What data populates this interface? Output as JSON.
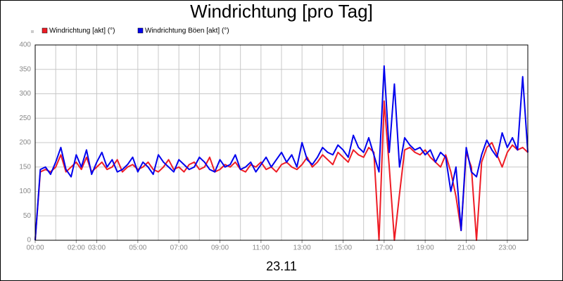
{
  "chart_data": {
    "type": "line",
    "title": "Windrichtung [pro Tag]",
    "xlabel": "23.11",
    "xlim": [
      0,
      24
    ],
    "ylim": [
      0,
      400
    ],
    "yticks": [
      0,
      50,
      100,
      150,
      200,
      250,
      300,
      350,
      400
    ],
    "xticks": [
      {
        "value": 0,
        "label": "00:00"
      },
      {
        "value": 2,
        "label": "02:00"
      },
      {
        "value": 3,
        "label": "03:00"
      },
      {
        "value": 5,
        "label": "05:00"
      },
      {
        "value": 7,
        "label": "07:00"
      },
      {
        "value": 9,
        "label": "09:00"
      },
      {
        "value": 11,
        "label": "11:00"
      },
      {
        "value": 13,
        "label": "13:00"
      },
      {
        "value": 15,
        "label": "15:00"
      },
      {
        "value": 17,
        "label": "17:00"
      },
      {
        "value": 19,
        "label": "19:00"
      },
      {
        "value": 21,
        "label": "21:00"
      },
      {
        "value": 23,
        "label": "23:00"
      }
    ],
    "xgrid": [
      1,
      2,
      3,
      4,
      5,
      6,
      7,
      8,
      9,
      10,
      11,
      12,
      13,
      14,
      15,
      16,
      17,
      18,
      19,
      20,
      21,
      22,
      23
    ],
    "grid": true,
    "x": [
      0,
      0.25,
      0.5,
      0.75,
      1,
      1.25,
      1.5,
      1.75,
      2,
      2.25,
      2.5,
      2.75,
      3,
      3.25,
      3.5,
      3.75,
      4,
      4.25,
      4.5,
      4.75,
      5,
      5.25,
      5.5,
      5.75,
      6,
      6.25,
      6.5,
      6.75,
      7,
      7.25,
      7.5,
      7.75,
      8,
      8.25,
      8.5,
      8.75,
      9,
      9.25,
      9.5,
      9.75,
      10,
      10.25,
      10.5,
      10.75,
      11,
      11.25,
      11.5,
      11.75,
      12,
      12.25,
      12.5,
      12.75,
      13,
      13.25,
      13.5,
      13.75,
      14,
      14.25,
      14.5,
      14.75,
      15,
      15.25,
      15.5,
      15.75,
      16,
      16.25,
      16.5,
      16.75,
      17,
      17.25,
      17.5,
      17.75,
      18,
      18.25,
      18.5,
      18.75,
      19,
      19.25,
      19.5,
      19.75,
      20,
      20.25,
      20.5,
      20.75,
      21,
      21.25,
      21.5,
      21.75,
      22,
      22.25,
      22.5,
      22.75,
      23,
      23.25,
      23.5,
      23.75,
      24
    ],
    "series": [
      {
        "name": "Windrichtung [akt] (°)",
        "color": "#ee1c25",
        "values": [
          0,
          140,
          145,
          140,
          150,
          175,
          140,
          150,
          160,
          145,
          170,
          140,
          150,
          160,
          145,
          150,
          165,
          140,
          150,
          155,
          145,
          150,
          160,
          145,
          140,
          150,
          165,
          145,
          150,
          140,
          155,
          160,
          145,
          150,
          170,
          140,
          145,
          155,
          150,
          160,
          145,
          140,
          155,
          150,
          160,
          145,
          150,
          140,
          155,
          160,
          150,
          145,
          155,
          170,
          150,
          160,
          175,
          165,
          155,
          180,
          170,
          160,
          185,
          175,
          170,
          190,
          180,
          0,
          285,
          150,
          0,
          95,
          185,
          190,
          180,
          175,
          185,
          170,
          160,
          150,
          175,
          140,
          90,
          20,
          180,
          150,
          0,
          160,
          190,
          200,
          175,
          150,
          180,
          195,
          185,
          190,
          180
        ]
      },
      {
        "name": "Windrichtung Böen [akt] (°)",
        "color": "#0000ee",
        "values": [
          0,
          145,
          150,
          135,
          160,
          190,
          145,
          130,
          175,
          150,
          185,
          135,
          160,
          180,
          150,
          165,
          140,
          145,
          155,
          170,
          140,
          160,
          150,
          135,
          175,
          160,
          150,
          140,
          165,
          155,
          145,
          150,
          170,
          160,
          145,
          140,
          165,
          150,
          155,
          175,
          145,
          150,
          160,
          140,
          155,
          170,
          150,
          165,
          180,
          160,
          175,
          150,
          200,
          165,
          155,
          170,
          190,
          180,
          175,
          195,
          185,
          170,
          215,
          190,
          180,
          210,
          175,
          140,
          357,
          180,
          320,
          150,
          210,
          195,
          185,
          190,
          175,
          185,
          160,
          180,
          170,
          100,
          150,
          20,
          190,
          140,
          130,
          175,
          205,
          185,
          170,
          220,
          190,
          210,
          185,
          335,
          180
        ]
      }
    ]
  }
}
